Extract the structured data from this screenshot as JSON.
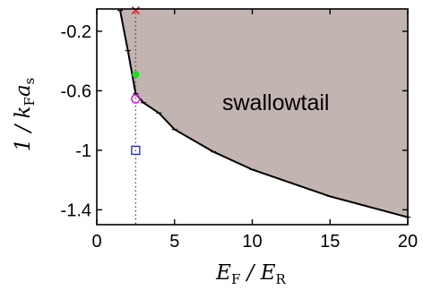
{
  "chart_data": {
    "type": "line",
    "title": "",
    "xlabel": {
      "main": "E",
      "sub": "F",
      "sep": " / ",
      "main2": "E",
      "sub2": "R"
    },
    "ylabel": {
      "prefix": "1 / ",
      "main": "k",
      "sub": "F",
      "main2": "a",
      "sub2": "s"
    },
    "xlim": [
      0,
      20
    ],
    "ylim": [
      -1.5,
      -0.05
    ],
    "x_ticks": [
      0,
      5,
      10,
      15,
      20
    ],
    "x_tick_labels": [
      "0",
      "5",
      "10",
      "15",
      "20"
    ],
    "y_ticks": [
      -0.2,
      -0.6,
      -1.0,
      -1.4
    ],
    "y_tick_labels": [
      "-0.2",
      "-0.6",
      "-1",
      "-1.4"
    ],
    "region_label": "swallowtail",
    "region_color": "#c2b4b1",
    "boundary": {
      "x": [
        1.5,
        2.0,
        2.5,
        3.0,
        4.0,
        5.0,
        7.5,
        10.0,
        15.0,
        20.0
      ],
      "y": [
        -0.06,
        -0.33,
        -0.62,
        -0.68,
        -0.75,
        -0.86,
        -1.01,
        -1.13,
        -1.31,
        -1.45
      ]
    },
    "vertical_line_x": 2.5,
    "markers": [
      {
        "shape": "x",
        "x": 2.5,
        "y": -0.06,
        "color": "#e8201c"
      },
      {
        "shape": "filled-circle",
        "x": 2.5,
        "y": -0.49,
        "color": "#22dd22"
      },
      {
        "shape": "open-circle",
        "x": 2.5,
        "y": -0.655,
        "color": "#dd22dd"
      },
      {
        "shape": "open-square",
        "x": 2.5,
        "y": -1.0,
        "color": "#2233cc"
      }
    ],
    "grid": false,
    "legend": "none"
  }
}
